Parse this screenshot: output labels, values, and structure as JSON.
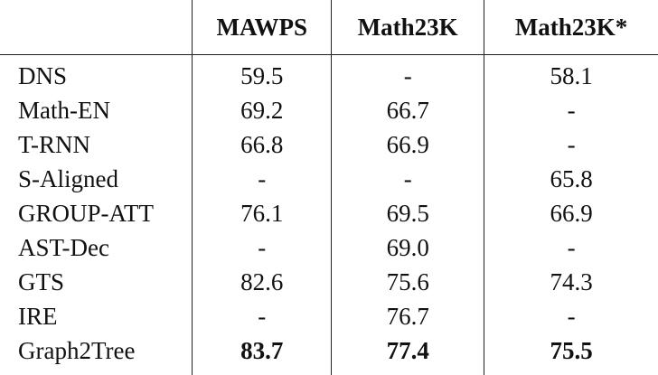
{
  "columns": [
    "",
    "MAWPS",
    "Math23K",
    "Math23K*"
  ],
  "rows": [
    {
      "model": "DNS",
      "values": [
        "59.5",
        "-",
        "58.1"
      ]
    },
    {
      "model": "Math-EN",
      "values": [
        "69.2",
        "66.7",
        "-"
      ]
    },
    {
      "model": "T-RNN",
      "values": [
        "66.8",
        "66.9",
        "-"
      ]
    },
    {
      "model": "S-Aligned",
      "values": [
        "-",
        "-",
        "65.8"
      ]
    },
    {
      "model": "GROUP-ATT",
      "values": [
        "76.1",
        "69.5",
        "66.9"
      ]
    },
    {
      "model": "AST-Dec",
      "values": [
        "-",
        "69.0",
        "-"
      ]
    },
    {
      "model": "GTS",
      "values": [
        "82.6",
        "75.6",
        "74.3"
      ]
    },
    {
      "model": "IRE",
      "values": [
        "-",
        "76.7",
        "-"
      ]
    },
    {
      "model": "Graph2Tree",
      "values": [
        "83.7",
        "77.4",
        "75.5"
      ],
      "bold": true
    }
  ]
}
